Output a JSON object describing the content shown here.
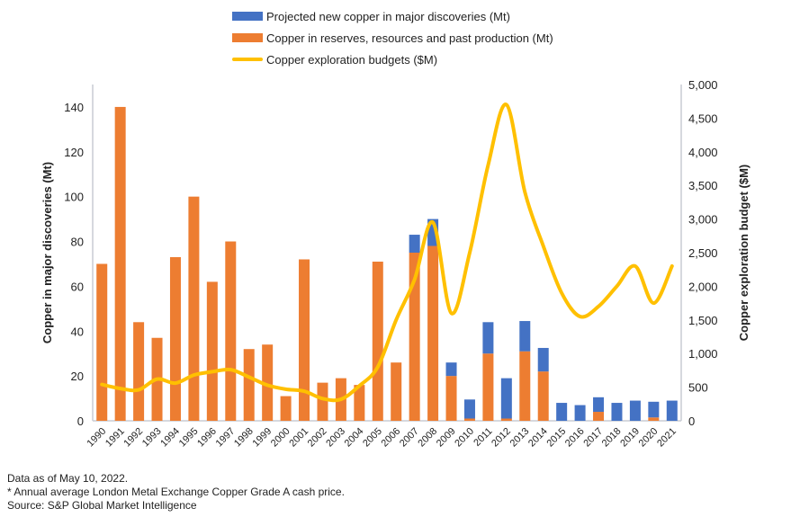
{
  "chart_data": {
    "type": "bar",
    "stacked": true,
    "categories": [
      "1990",
      "1991",
      "1992",
      "1993",
      "1994",
      "1995",
      "1996",
      "1997",
      "1998",
      "1999",
      "2000",
      "2001",
      "2002",
      "2003",
      "2004",
      "2005",
      "2006",
      "2007",
      "2008",
      "2009",
      "2010",
      "2011",
      "2012",
      "2013",
      "2014",
      "2015",
      "2016",
      "2017",
      "2018",
      "2019",
      "2020",
      "2021"
    ],
    "series": [
      {
        "name": "Copper in reserves, resources and past production (Mt)",
        "type": "bar",
        "axis": "left",
        "color": "#ED7D31",
        "values": [
          70,
          140,
          44,
          37,
          73,
          100,
          62,
          80,
          32,
          34,
          11,
          72,
          17,
          19,
          16,
          71,
          26,
          75,
          78,
          20,
          1,
          30,
          1,
          31,
          22,
          0,
          0,
          4,
          0,
          0,
          1.5,
          0
        ]
      },
      {
        "name": "Projected new copper in major discoveries (Mt)",
        "type": "bar",
        "axis": "left",
        "color": "#4472C4",
        "values": [
          0,
          0,
          0,
          0,
          0,
          0,
          0,
          0,
          0,
          0,
          0,
          0,
          0,
          0,
          0,
          0,
          0,
          8,
          12,
          6,
          8.5,
          14,
          18,
          13.5,
          10.5,
          8,
          7,
          6.5,
          8,
          9,
          7,
          9
        ]
      },
      {
        "name": "Copper exploration budgets ($M)",
        "type": "line",
        "axis": "right",
        "color": "#FFC000",
        "values": [
          540,
          480,
          460,
          620,
          560,
          680,
          730,
          760,
          650,
          530,
          470,
          440,
          330,
          320,
          520,
          800,
          1500,
          2100,
          2950,
          1600,
          2500,
          3800,
          4700,
          3400,
          2600,
          1900,
          1550,
          1700,
          2000,
          2300,
          1750,
          2300
        ]
      }
    ],
    "legend": [
      "Projected new copper in major discoveries (Mt)",
      "Copper in reserves, resources and past production (Mt)",
      "Copper exploration budgets ($M)"
    ],
    "legend_position": "top",
    "ylabel": "Copper in major discoveries (Mt)",
    "ylim": [
      0,
      150
    ],
    "yticks": [
      "0",
      "20",
      "40",
      "60",
      "80",
      "100",
      "120",
      "140"
    ],
    "y2label": "Copper exploration budget ($M)",
    "y2lim": [
      0,
      5000
    ],
    "y2ticks": [
      "0",
      "500",
      "1,000",
      "1,500",
      "2,000",
      "2,500",
      "3,000",
      "3,500",
      "4,000",
      "4,500",
      "5,000"
    ],
    "grid": false
  },
  "notes": [
    "Data as of May 10, 2022.",
    "* Annual average London Metal Exchange Copper Grade A cash price.",
    "Source: S&P Global Market Intelligence"
  ]
}
